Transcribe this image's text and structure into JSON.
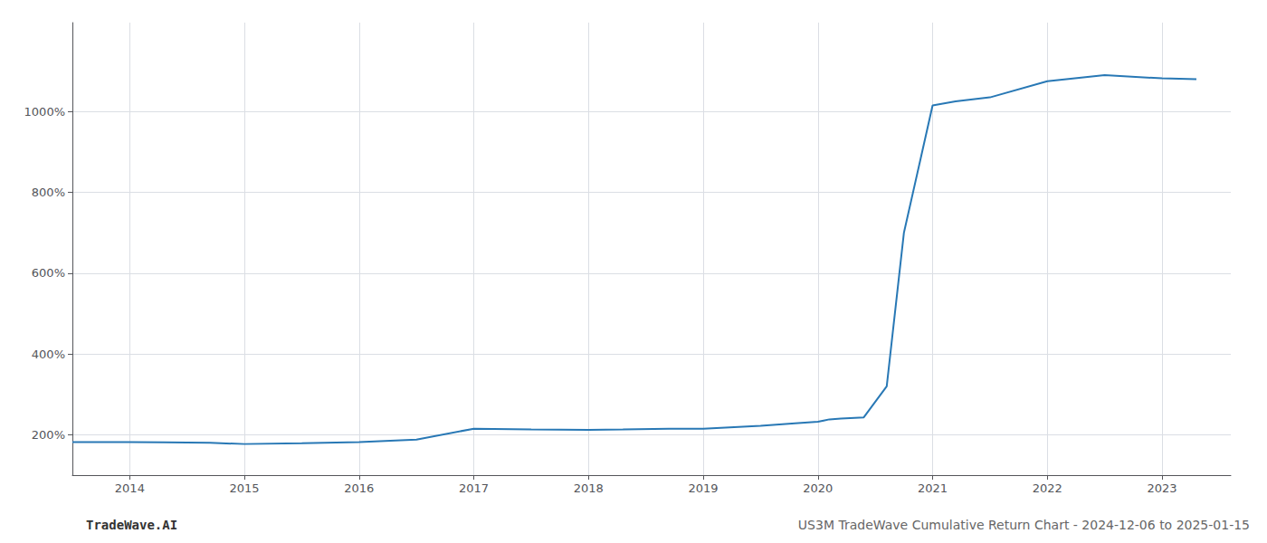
{
  "chart_data": {
    "type": "line",
    "title": "US3M TradeWave Cumulative Return Chart - 2024-12-06 to 2025-01-15",
    "annotations": [
      "TradeWave.AI"
    ],
    "x": [
      2013.5,
      2014.0,
      2014.3,
      2014.7,
      2015.0,
      2015.5,
      2016.0,
      2016.5,
      2017.0,
      2017.5,
      2018.0,
      2018.3,
      2018.7,
      2019.0,
      2019.5,
      2019.8,
      2020.0,
      2020.05,
      2020.1,
      2020.2,
      2020.4,
      2020.6,
      2020.75,
      2021.0,
      2021.2,
      2021.5,
      2022.0,
      2022.5,
      2023.0,
      2023.3
    ],
    "values": [
      182,
      182,
      181,
      180,
      177,
      179,
      182,
      188,
      215,
      213,
      212,
      213,
      215,
      215,
      222,
      228,
      232,
      235,
      238,
      240,
      243,
      320,
      700,
      1015,
      1025,
      1035,
      1075,
      1090,
      1082,
      1080
    ],
    "color": "#2878b5",
    "xlim": [
      2013.5,
      2023.6
    ],
    "xticks": [
      2014,
      2015,
      2016,
      2017,
      2018,
      2019,
      2020,
      2021,
      2022,
      2023
    ],
    "ylim": [
      100,
      1220
    ],
    "yticks": [
      {
        "value": 200,
        "label": "200%"
      },
      {
        "value": 400,
        "label": "400%"
      },
      {
        "value": 600,
        "label": "600%"
      },
      {
        "value": 800,
        "label": "800%"
      },
      {
        "value": 1000,
        "label": "1000%"
      }
    ],
    "grid": true
  }
}
